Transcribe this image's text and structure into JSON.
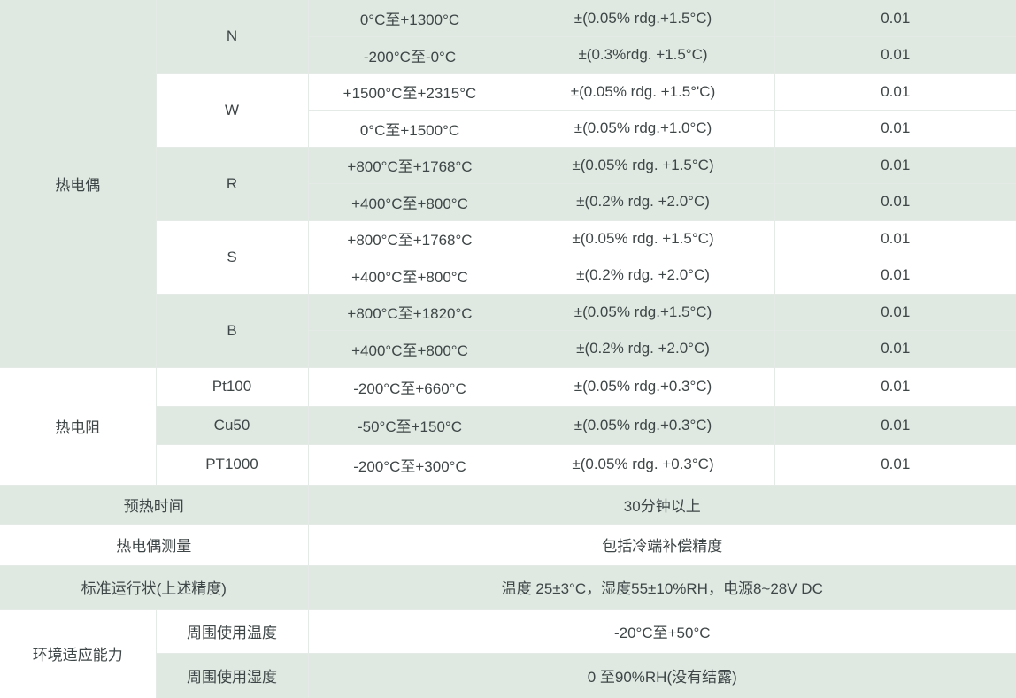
{
  "colors": {
    "band_green": "#dfe9e2",
    "row_white": "#ffffff",
    "gridline": "#e4eae5",
    "text": "#3f4647"
  },
  "table": {
    "sensor_sections": [
      {
        "category": "热电偶",
        "groups": [
          {
            "type": "N",
            "rows": [
              {
                "range": "0°C至+1300°C",
                "accuracy": "±(0.05% rdg.+1.5°C)",
                "resolution": "0.01"
              },
              {
                "range": "-200°C至-0°C",
                "accuracy": "±(0.3%rdg. +1.5°C)",
                "resolution": "0.01"
              }
            ]
          },
          {
            "type": "W",
            "rows": [
              {
                "range": "+1500°C至+2315°C",
                "accuracy": "±(0.05% rdg. +1.5°'C)",
                "resolution": "0.01"
              },
              {
                "range": "0°C至+1500°C",
                "accuracy": "±(0.05% rdg.+1.0°C)",
                "resolution": "0.01"
              }
            ]
          },
          {
            "type": "R",
            "rows": [
              {
                "range": "+800°C至+1768°C",
                "accuracy": "±(0.05% rdg. +1.5°C)",
                "resolution": "0.01"
              },
              {
                "range": "+400°C至+800°C",
                "accuracy": "±(0.2% rdg. +2.0°C)",
                "resolution": "0.01"
              }
            ]
          },
          {
            "type": "S",
            "rows": [
              {
                "range": "+800°C至+1768°C",
                "accuracy": "±(0.05% rdg. +1.5°C)",
                "resolution": "0.01"
              },
              {
                "range": "+400°C至+800°C",
                "accuracy": "±(0.2% rdg. +2.0°C)",
                "resolution": "0.01"
              }
            ]
          },
          {
            "type": "B",
            "rows": [
              {
                "range": "+800°C至+1820°C",
                "accuracy": "±(0.05% rdg.+1.5°C)",
                "resolution": "0.01"
              },
              {
                "range": "+400°C至+800°C",
                "accuracy": "±(0.2% rdg. +2.0°C)",
                "resolution": "0.01"
              }
            ]
          }
        ]
      },
      {
        "category": "热电阻",
        "groups": [
          {
            "type": "Pt100",
            "rows": [
              {
                "range": "-200°C至+660°C",
                "accuracy": "±(0.05% rdg.+0.3°C)",
                "resolution": "0.01"
              }
            ]
          },
          {
            "type": "Cu50",
            "rows": [
              {
                "range": "-50°C至+150°C",
                "accuracy": "±(0.05% rdg.+0.3°C)",
                "resolution": "0.01"
              }
            ]
          },
          {
            "type": "PT1000",
            "rows": [
              {
                "range": "-200°C至+300°C",
                "accuracy": "±(0.05% rdg. +0.3°C)",
                "resolution": "0.01"
              }
            ]
          }
        ]
      }
    ],
    "info_rows": [
      {
        "label": "预热时间",
        "value": "30分钟以上"
      },
      {
        "label": "热电偶测量",
        "value": "包括冷端补偿精度"
      },
      {
        "label": "标准运行状(上述精度)",
        "value": "温度 25±3°C，湿度55±10%RH，电源8~28V DC"
      }
    ],
    "env_section": {
      "category": "环境适应能力",
      "rows": [
        {
          "label": "周围使用温度",
          "value": "-20°C至+50°C"
        },
        {
          "label": "周围使用湿度",
          "value": "0 至90%RH(没有结露)"
        }
      ]
    }
  }
}
